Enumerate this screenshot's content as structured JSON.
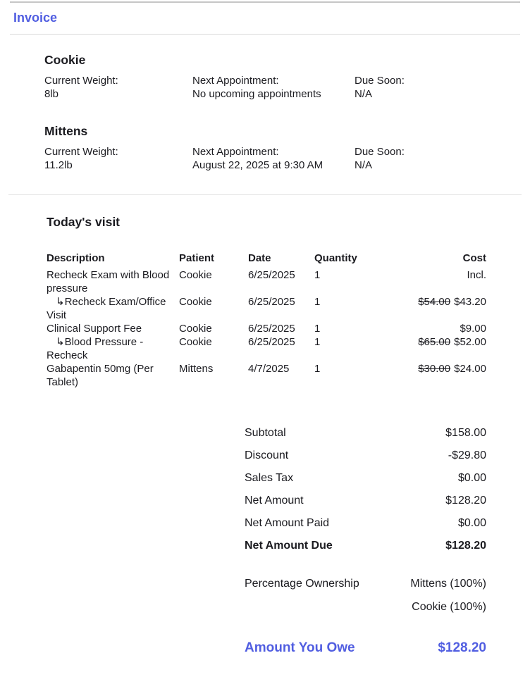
{
  "colors": {
    "accent": "#515ee1",
    "text": "#1b1b20",
    "rule_dark": "#c6c6c6",
    "rule_light": "#e2e2e2"
  },
  "header": {
    "title": "Invoice"
  },
  "glyphs": {
    "sub_item_arrow": "↳"
  },
  "pets": [
    {
      "name": "Cookie",
      "fields": [
        {
          "label": "Current Weight:",
          "value": "8lb"
        },
        {
          "label": "Next Appointment:",
          "value": "No upcoming appointments"
        },
        {
          "label": "Due Soon:",
          "value": "N/A"
        }
      ]
    },
    {
      "name": "Mittens",
      "fields": [
        {
          "label": "Current Weight:",
          "value": "11.2lb"
        },
        {
          "label": "Next Appointment:",
          "value": "August 22, 2025 at 9:30 AM"
        },
        {
          "label": "Due Soon:",
          "value": "N/A"
        }
      ]
    }
  ],
  "visit": {
    "title": "Today's visit",
    "columns": [
      "Description",
      "Patient",
      "Date",
      "Quantity",
      "Cost"
    ],
    "rows": [
      {
        "description": "Recheck Exam with Blood pressure",
        "sub_item": false,
        "patient": "Cookie",
        "date": "6/25/2025",
        "quantity": "1",
        "original_cost": "",
        "cost": "Incl."
      },
      {
        "description": "Recheck Exam/Office Visit",
        "sub_item": true,
        "patient": "Cookie",
        "date": "6/25/2025",
        "quantity": "1",
        "original_cost": "$54.00",
        "cost": "$43.20"
      },
      {
        "description": "Clinical Support Fee",
        "sub_item": false,
        "patient": "Cookie",
        "date": "6/25/2025",
        "quantity": "1",
        "original_cost": "",
        "cost": "$9.00"
      },
      {
        "description": "Blood Pressure - Recheck",
        "sub_item": true,
        "patient": "Cookie",
        "date": "6/25/2025",
        "quantity": "1",
        "original_cost": "$65.00",
        "cost": "$52.00"
      },
      {
        "description": "Gabapentin 50mg (Per Tablet)",
        "sub_item": false,
        "patient": "Mittens",
        "date": "4/7/2025",
        "quantity": "1",
        "original_cost": "$30.00",
        "cost": "$24.00"
      }
    ]
  },
  "totals": {
    "rows": [
      {
        "label": "Subtotal",
        "value": "$158.00"
      },
      {
        "label": "Discount",
        "value": "-$29.80"
      },
      {
        "label": "Sales Tax",
        "value": "$0.00"
      },
      {
        "label": "Net Amount",
        "value": "$128.20"
      },
      {
        "label": "Net Amount Paid",
        "value": "$0.00"
      },
      {
        "label": "Net Amount Due",
        "value": "$128.20"
      }
    ],
    "ownership": {
      "label": "Percentage Ownership",
      "values": [
        "Mittens (100%)",
        "Cookie (100%)"
      ]
    },
    "amount_due": {
      "label": "Amount You Owe",
      "value": "$128.20"
    }
  }
}
